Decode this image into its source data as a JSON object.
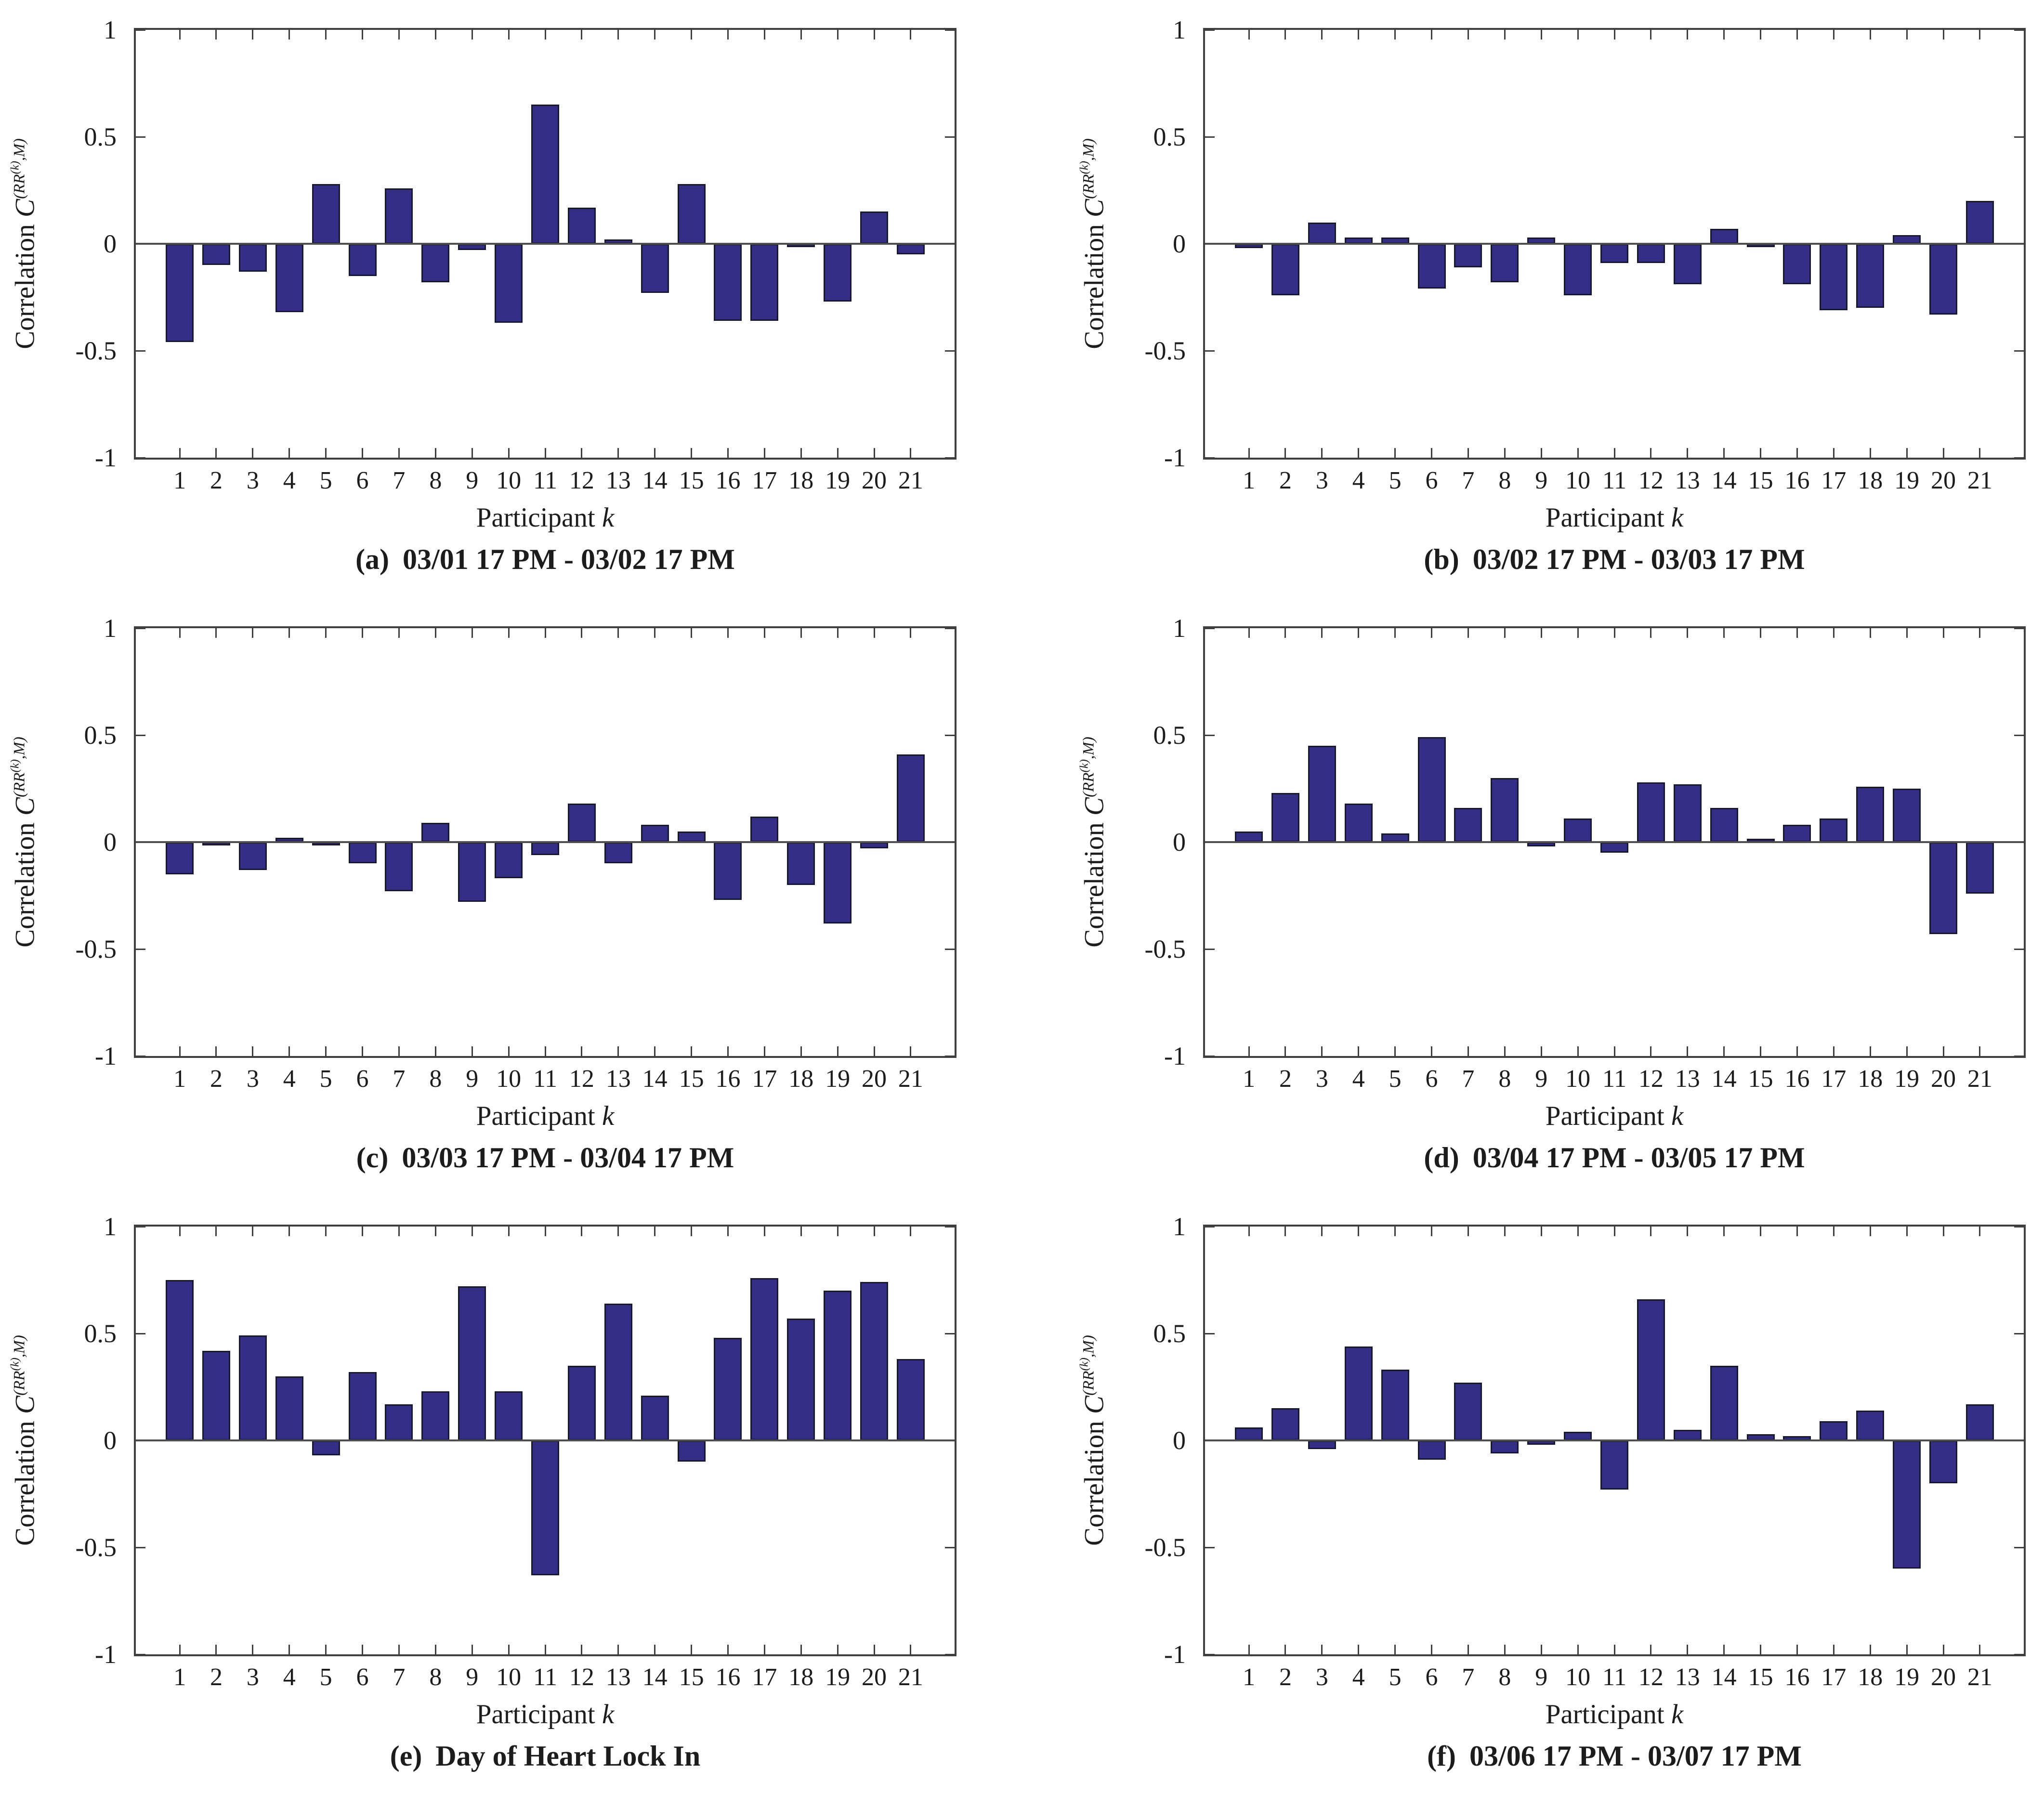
{
  "figure": {
    "ylabel": {
      "prefix": "Correlation ",
      "var": "C",
      "sup1": "(RR",
      "sup2": "(k)",
      "sup3": ",M)"
    },
    "xlabel": {
      "prefix": "Participant ",
      "var": "k"
    },
    "ytick_labels": [
      "1",
      "0.5",
      "0",
      "-0.5",
      "-1"
    ],
    "colors": {
      "bar_fill": "#352e87",
      "bar_edge": "#18182f",
      "axis": "#3f3f3f",
      "zero_line": "#4f4f4f",
      "text": "#1c1c1c"
    }
  },
  "chart_data": [
    {
      "id": "a",
      "type": "bar",
      "label": "(a)",
      "title": "03/01 17 PM - 03/02 17 PM",
      "xlabel": "Participant k",
      "ylabel": "Correlation C^{(RR^{(k)},M)}",
      "ylim": [
        -1,
        1
      ],
      "yticks": [
        -1,
        -0.5,
        0,
        0.5,
        1
      ],
      "categories": [
        "1",
        "2",
        "3",
        "4",
        "5",
        "6",
        "7",
        "8",
        "9",
        "10",
        "11",
        "12",
        "13",
        "14",
        "15",
        "16",
        "17",
        "18",
        "19",
        "20",
        "21"
      ],
      "values": [
        -0.46,
        -0.1,
        -0.13,
        -0.32,
        0.28,
        -0.15,
        0.26,
        -0.18,
        -0.03,
        -0.37,
        0.65,
        0.17,
        0.02,
        -0.23,
        0.28,
        -0.36,
        -0.36,
        -0.01,
        -0.27,
        0.15,
        -0.05
      ]
    },
    {
      "id": "b",
      "type": "bar",
      "label": "(b)",
      "title": "03/02 17 PM - 03/03 17 PM",
      "xlabel": "Participant k",
      "ylabel": "Correlation C^{(RR^{(k)},M)}",
      "ylim": [
        -1,
        1
      ],
      "yticks": [
        -1,
        -0.5,
        0,
        0.5,
        1
      ],
      "categories": [
        "1",
        "2",
        "3",
        "4",
        "5",
        "6",
        "7",
        "8",
        "9",
        "10",
        "11",
        "12",
        "13",
        "14",
        "15",
        "16",
        "17",
        "18",
        "19",
        "20",
        "21"
      ],
      "values": [
        -0.02,
        -0.24,
        0.1,
        0.03,
        0.03,
        -0.21,
        -0.11,
        -0.18,
        0.03,
        -0.24,
        -0.09,
        -0.09,
        -0.19,
        0.07,
        -0.01,
        -0.19,
        -0.31,
        -0.3,
        0.04,
        -0.33,
        0.2
      ]
    },
    {
      "id": "c",
      "type": "bar",
      "label": "(c)",
      "title": "03/03 17 PM - 03/04 17 PM",
      "xlabel": "Participant k",
      "ylabel": "Correlation C^{(RR^{(k)},M)}",
      "ylim": [
        -1,
        1
      ],
      "yticks": [
        -1,
        -0.5,
        0,
        0.5,
        1
      ],
      "categories": [
        "1",
        "2",
        "3",
        "4",
        "5",
        "6",
        "7",
        "8",
        "9",
        "10",
        "11",
        "12",
        "13",
        "14",
        "15",
        "16",
        "17",
        "18",
        "19",
        "20",
        "21"
      ],
      "values": [
        -0.15,
        -0.01,
        -0.13,
        0.02,
        -0.01,
        -0.1,
        -0.23,
        0.09,
        -0.28,
        -0.17,
        -0.06,
        0.18,
        -0.1,
        0.08,
        0.05,
        -0.27,
        0.12,
        -0.2,
        -0.38,
        -0.03,
        0.41
      ]
    },
    {
      "id": "d",
      "type": "bar",
      "label": "(d)",
      "title": "03/04 17 PM - 03/05 17 PM",
      "xlabel": "Participant k",
      "ylabel": "Correlation C^{(RR^{(k)},M)}",
      "ylim": [
        -1,
        1
      ],
      "yticks": [
        -1,
        -0.5,
        0,
        0.5,
        1
      ],
      "categories": [
        "1",
        "2",
        "3",
        "4",
        "5",
        "6",
        "7",
        "8",
        "9",
        "10",
        "11",
        "12",
        "13",
        "14",
        "15",
        "16",
        "17",
        "18",
        "19",
        "20",
        "21"
      ],
      "values": [
        0.05,
        0.23,
        0.45,
        0.18,
        0.04,
        0.49,
        0.16,
        0.3,
        -0.02,
        0.11,
        -0.05,
        0.28,
        0.27,
        0.16,
        0.01,
        0.08,
        0.11,
        0.26,
        0.25,
        -0.43,
        -0.24
      ]
    },
    {
      "id": "e",
      "type": "bar",
      "label": "(e)",
      "title": "Day of Heart Lock In",
      "xlabel": "Participant k",
      "ylabel": "Correlation C^{(RR^{(k)},M)}",
      "ylim": [
        -1,
        1
      ],
      "yticks": [
        -1,
        -0.5,
        0,
        0.5,
        1
      ],
      "categories": [
        "1",
        "2",
        "3",
        "4",
        "5",
        "6",
        "7",
        "8",
        "9",
        "10",
        "11",
        "12",
        "13",
        "14",
        "15",
        "16",
        "17",
        "18",
        "19",
        "20",
        "21"
      ],
      "values": [
        0.75,
        0.42,
        0.49,
        0.3,
        -0.07,
        0.32,
        0.17,
        0.23,
        0.72,
        0.23,
        -0.63,
        0.35,
        0.64,
        0.21,
        -0.1,
        0.48,
        0.76,
        0.57,
        0.7,
        0.74,
        0.38
      ]
    },
    {
      "id": "f",
      "type": "bar",
      "label": "(f)",
      "title": "03/06 17 PM - 03/07 17 PM",
      "xlabel": "Participant k",
      "ylabel": "Correlation C^{(RR^{(k)},M)}",
      "ylim": [
        -1,
        1
      ],
      "yticks": [
        -1,
        -0.5,
        0,
        0.5,
        1
      ],
      "categories": [
        "1",
        "2",
        "3",
        "4",
        "5",
        "6",
        "7",
        "8",
        "9",
        "10",
        "11",
        "12",
        "13",
        "14",
        "15",
        "16",
        "17",
        "18",
        "19",
        "20",
        "21"
      ],
      "values": [
        0.06,
        0.15,
        -0.04,
        0.44,
        0.33,
        -0.09,
        0.27,
        -0.06,
        -0.02,
        0.04,
        -0.23,
        0.66,
        0.05,
        0.35,
        0.03,
        0.02,
        0.09,
        0.14,
        -0.6,
        -0.2,
        0.17
      ]
    }
  ]
}
